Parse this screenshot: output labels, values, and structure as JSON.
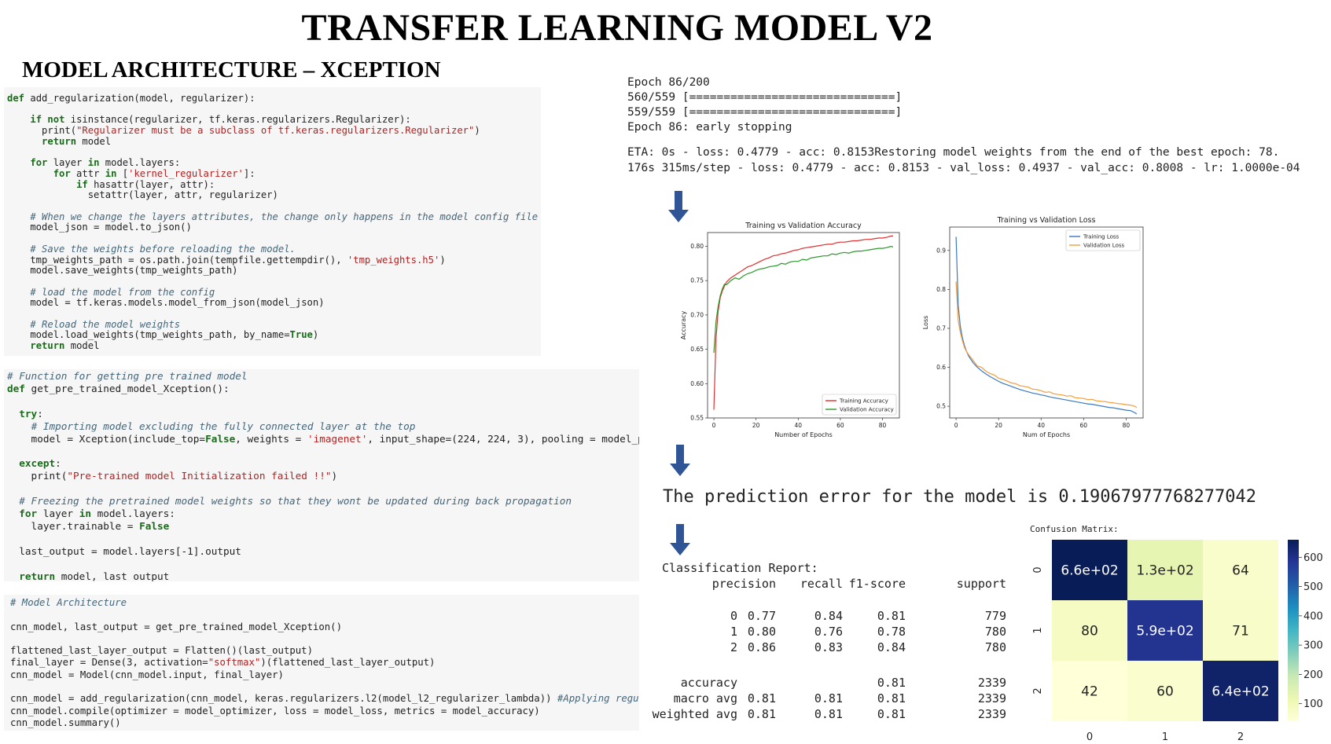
{
  "page": {
    "title": "TRANSFER LEARNING MODEL V2",
    "subtitle": "MODEL ARCHITECTURE – XCEPTION"
  },
  "code_block_1": [
    "def add_regularization(model, regularizer):",
    "",
    "    if not isinstance(regularizer, tf.keras.regularizers.Regularizer):",
    "      print(\"Regularizer must be a subclass of tf.keras.regularizers.Regularizer\")",
    "      return model",
    "",
    "    for layer in model.layers:",
    "        for attr in ['kernel_regularizer']:",
    "            if hasattr(layer, attr):",
    "              setattr(layer, attr, regularizer)",
    "",
    "    # When we change the layers attributes, the change only happens in the model config file",
    "    model_json = model.to_json()",
    "",
    "    # Save the weights before reloading the model.",
    "    tmp_weights_path = os.path.join(tempfile.gettempdir(), 'tmp_weights.h5')",
    "    model.save_weights(tmp_weights_path)",
    "",
    "    # load the model from the config",
    "    model = tf.keras.models.model_from_json(model_json)",
    "",
    "    # Reload the model weights",
    "    model.load_weights(tmp_weights_path, by_name=True)",
    "    return model"
  ],
  "code_block_2": [
    "# Function for getting pre trained model",
    "def get_pre_trained_model_Xception():",
    "",
    "  try:",
    "    # Importing model excluding the fully connected layer at the top",
    "    model = Xception(include_top=False, weights = 'imagenet', input_shape=(224, 224, 3), pooling = model_pooling)",
    "",
    "  except:",
    "    print(\"Pre-trained model Initialization failed !!\")",
    "",
    "  # Freezing the pretrained model weights so that they wont be updated during back propagation",
    "  for layer in model.layers:",
    "    layer.trainable = False",
    "",
    "  last_output = model.layers[-1].output",
    "",
    "  return model, last_output"
  ],
  "code_block_3": [
    "# Model Architecture",
    "",
    "cnn_model, last_output = get_pre_trained_model_Xception()",
    "",
    "flattened_last_layer_output = Flatten()(last_output)",
    "final_layer = Dense(3, activation=\"softmax\")(flattened_last_layer_output)",
    "cnn_model = Model(cnn_model.input, final_layer)",
    "",
    "cnn_model = add_regularization(cnn_model, keras.regularizers.l2(model_l2_regularizer_lambda)) #Applying regularisation",
    "cnn_model.compile(optimizer = model_optimizer, loss = model_loss, metrics = model_accuracy)",
    "cnn_model.summary()"
  ],
  "training_log": [
    "Epoch 86/200",
    "560/559 [==============================]",
    "559/559 [==============================]",
    "Epoch 86: early stopping"
  ],
  "training_log_2": [
    "ETA: 0s - loss: 0.4779 - acc: 0.8153Restoring model weights from the end of the best epoch: 78.",
    "176s 315ms/step - loss: 0.4779 - acc: 0.8153 - val_loss: 0.4937 - val_acc: 0.8008 - lr: 1.0000e-04"
  ],
  "prediction_error_text": "The prediction error for the model is 0.19067977768277042",
  "classification_report": {
    "title": "Classification Report:",
    "headers": [
      "precision",
      "recall",
      "f1-score",
      "support"
    ],
    "rows": [
      {
        "label": "0",
        "precision": "0.77",
        "recall": "0.84",
        "f1": "0.81",
        "support": "779"
      },
      {
        "label": "1",
        "precision": "0.80",
        "recall": "0.76",
        "f1": "0.78",
        "support": "780"
      },
      {
        "label": "2",
        "precision": "0.86",
        "recall": "0.83",
        "f1": "0.84",
        "support": "780"
      }
    ],
    "summary": [
      {
        "label": "accuracy",
        "precision": "",
        "recall": "",
        "f1": "0.81",
        "support": "2339"
      },
      {
        "label": "macro avg",
        "precision": "0.81",
        "recall": "0.81",
        "f1": "0.81",
        "support": "2339"
      },
      {
        "label": "weighted avg",
        "precision": "0.81",
        "recall": "0.81",
        "f1": "0.81",
        "support": "2339"
      }
    ]
  },
  "colors": {
    "arrow": "#2f5597",
    "train_acc": "#e03030",
    "val_acc": "#2a9a2a",
    "train_loss": "#3b78c2",
    "val_loss": "#f39b3a"
  },
  "chart_data": [
    {
      "type": "line",
      "title": "Training vs Validation Accuracy",
      "xlabel": "Number of Epochs",
      "ylabel": "Accuracy",
      "xlim": [
        -3,
        88
      ],
      "ylim": [
        0.55,
        0.82
      ],
      "xticks": [
        0,
        20,
        40,
        60,
        80
      ],
      "yticks": [
        0.55,
        0.6,
        0.65,
        0.7,
        0.75,
        0.8
      ],
      "ytick_labels": [
        "0.55",
        "0.60",
        "0.65",
        "0.70",
        "0.75",
        "0.80"
      ],
      "legend": "bottom-right",
      "x": [
        0,
        1,
        2,
        3,
        4,
        5,
        6,
        8,
        10,
        12,
        14,
        16,
        18,
        20,
        22,
        24,
        26,
        28,
        30,
        32,
        34,
        36,
        38,
        40,
        42,
        44,
        46,
        48,
        50,
        52,
        54,
        56,
        58,
        60,
        62,
        64,
        66,
        68,
        70,
        72,
        74,
        76,
        78,
        80,
        82,
        84,
        85
      ],
      "series": [
        {
          "name": "Training Accuracy",
          "color": "#e03030",
          "values": [
            0.562,
            0.665,
            0.705,
            0.725,
            0.735,
            0.742,
            0.748,
            0.754,
            0.758,
            0.762,
            0.766,
            0.77,
            0.772,
            0.775,
            0.778,
            0.781,
            0.783,
            0.786,
            0.787,
            0.789,
            0.79,
            0.792,
            0.794,
            0.795,
            0.797,
            0.798,
            0.799,
            0.8,
            0.801,
            0.802,
            0.803,
            0.803,
            0.805,
            0.806,
            0.806,
            0.807,
            0.808,
            0.808,
            0.809,
            0.81,
            0.81,
            0.811,
            0.812,
            0.812,
            0.813,
            0.815,
            0.815
          ]
        },
        {
          "name": "Validation Accuracy",
          "color": "#2a9a2a",
          "values": [
            0.645,
            0.69,
            0.712,
            0.728,
            0.738,
            0.745,
            0.744,
            0.75,
            0.754,
            0.752,
            0.757,
            0.76,
            0.762,
            0.765,
            0.767,
            0.768,
            0.77,
            0.771,
            0.772,
            0.775,
            0.774,
            0.777,
            0.778,
            0.778,
            0.781,
            0.78,
            0.783,
            0.784,
            0.785,
            0.786,
            0.786,
            0.789,
            0.788,
            0.79,
            0.791,
            0.79,
            0.792,
            0.793,
            0.793,
            0.794,
            0.795,
            0.796,
            0.797,
            0.797,
            0.798,
            0.8,
            0.799
          ]
        }
      ]
    },
    {
      "type": "line",
      "title": "Training vs Validation Loss",
      "xlabel": "Num of Epochs",
      "ylabel": "Loss",
      "xlim": [
        -3,
        88
      ],
      "ylim": [
        0.47,
        0.96
      ],
      "xticks": [
        0,
        20,
        40,
        60,
        80
      ],
      "yticks": [
        0.5,
        0.6,
        0.7,
        0.8,
        0.9
      ],
      "ytick_labels": [
        "0.5",
        "0.6",
        "0.7",
        "0.8",
        "0.9"
      ],
      "legend": "top-right",
      "x": [
        0,
        1,
        2,
        3,
        4,
        5,
        6,
        8,
        10,
        12,
        14,
        16,
        18,
        20,
        22,
        24,
        26,
        28,
        30,
        32,
        34,
        36,
        38,
        40,
        42,
        44,
        46,
        48,
        50,
        52,
        54,
        56,
        58,
        60,
        62,
        64,
        66,
        68,
        70,
        72,
        74,
        76,
        78,
        80,
        82,
        84,
        85
      ],
      "series": [
        {
          "name": "Training Loss",
          "color": "#3b78c2",
          "values": [
            0.935,
            0.76,
            0.705,
            0.675,
            0.655,
            0.64,
            0.628,
            0.612,
            0.6,
            0.591,
            0.583,
            0.576,
            0.57,
            0.564,
            0.559,
            0.555,
            0.551,
            0.547,
            0.543,
            0.54,
            0.537,
            0.534,
            0.532,
            0.529,
            0.527,
            0.524,
            0.522,
            0.52,
            0.518,
            0.516,
            0.514,
            0.512,
            0.51,
            0.508,
            0.506,
            0.505,
            0.503,
            0.501,
            0.499,
            0.497,
            0.496,
            0.494,
            0.492,
            0.49,
            0.489,
            0.484,
            0.48
          ]
        },
        {
          "name": "Validation Loss",
          "color": "#f39b3a",
          "values": [
            0.82,
            0.72,
            0.69,
            0.668,
            0.65,
            0.64,
            0.632,
            0.618,
            0.603,
            0.6,
            0.59,
            0.584,
            0.58,
            0.572,
            0.569,
            0.565,
            0.56,
            0.558,
            0.553,
            0.551,
            0.549,
            0.544,
            0.543,
            0.54,
            0.536,
            0.537,
            0.532,
            0.53,
            0.529,
            0.526,
            0.527,
            0.522,
            0.521,
            0.52,
            0.517,
            0.518,
            0.514,
            0.513,
            0.512,
            0.51,
            0.509,
            0.507,
            0.506,
            0.504,
            0.503,
            0.5,
            0.497
          ]
        }
      ]
    },
    {
      "type": "heatmap",
      "title": "Confusion Matrix:",
      "x_labels": [
        "0",
        "1",
        "2"
      ],
      "y_labels": [
        "0",
        "1",
        "2"
      ],
      "values": [
        [
          660,
          130,
          64
        ],
        [
          80,
          590,
          71
        ],
        [
          42,
          60,
          640
        ]
      ],
      "annotations": [
        [
          "6.6e+02",
          "1.3e+02",
          "64"
        ],
        [
          "80",
          "5.9e+02",
          "71"
        ],
        [
          "42",
          "60",
          "6.4e+02"
        ]
      ],
      "colorbar_ticks": [
        "100",
        "200",
        "300",
        "400",
        "500",
        "600"
      ],
      "colorbar_range": [
        40,
        660
      ]
    }
  ]
}
